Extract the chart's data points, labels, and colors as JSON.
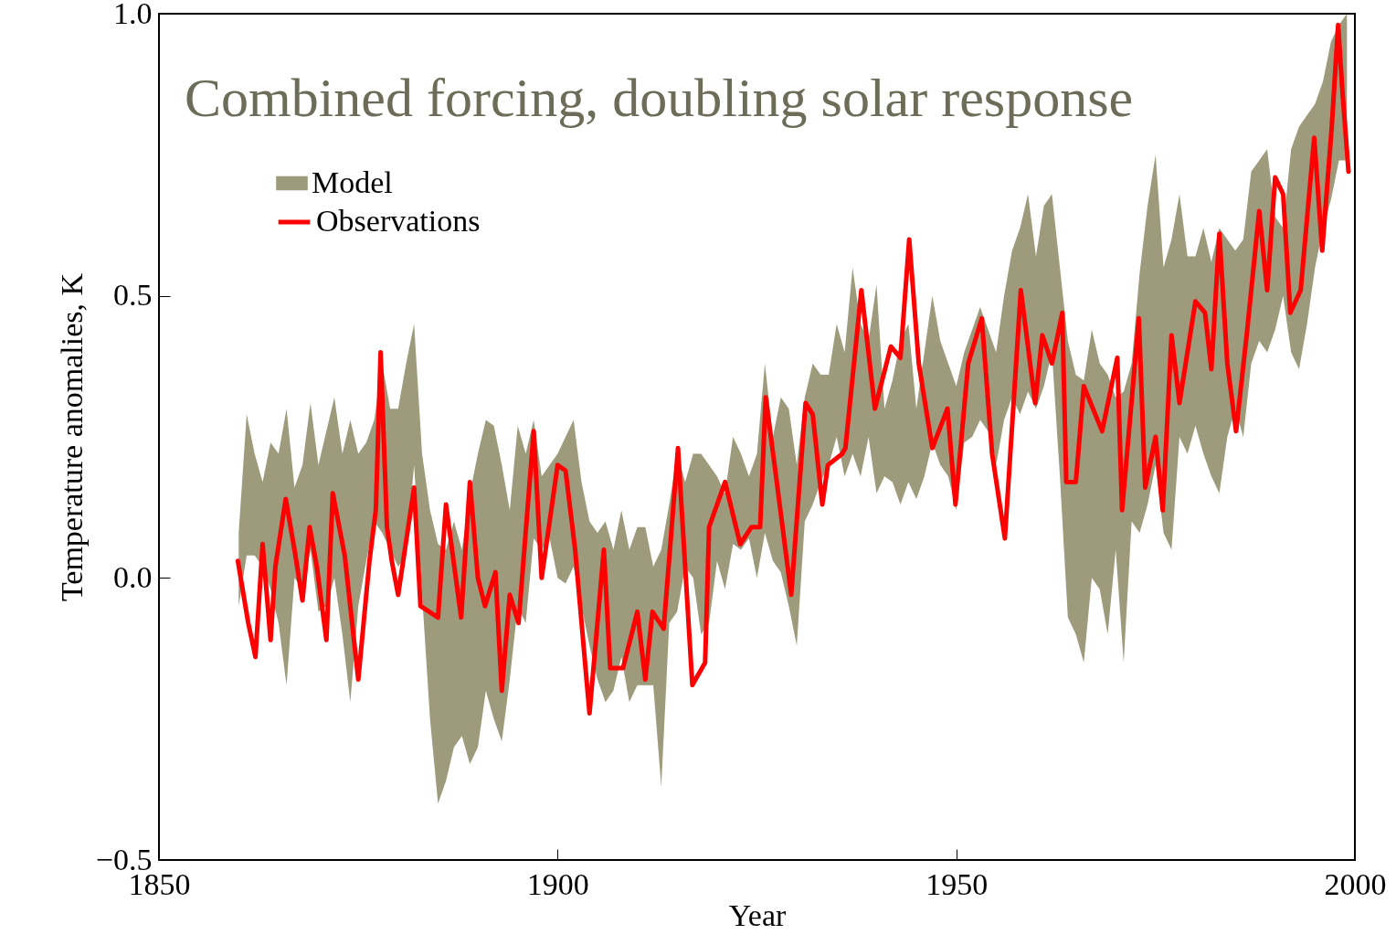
{
  "chart_data": {
    "type": "line",
    "title": "Combined forcing, doubling solar response",
    "xlabel": "Year",
    "ylabel": "Temperature anomalies, K",
    "xlim": [
      1850,
      2000
    ],
    "xticks": [
      1850,
      1900,
      1950,
      2000
    ],
    "ylim": [
      -0.5,
      1.0
    ],
    "yticks": [
      {
        "value": -0.5,
        "label": "−0.5"
      },
      {
        "value": 0,
        "label": "0.0"
      },
      {
        "value": 0.5,
        "label": "0.5"
      },
      {
        "value": 1,
        "label": "1.0"
      }
    ],
    "grid": false,
    "legend": "top left",
    "series": [
      {
        "name": "Model",
        "type": "area",
        "color": "#9e9b7c",
        "x": [
          1860,
          1861,
          1862,
          1863,
          1864,
          1865,
          1866,
          1867,
          1868,
          1869,
          1870,
          1871,
          1872,
          1873,
          1874,
          1875,
          1876,
          1877,
          1878,
          1879,
          1880,
          1881,
          1882,
          1883,
          1884,
          1885,
          1886,
          1887,
          1888,
          1889,
          1890,
          1891,
          1892,
          1893,
          1894,
          1895,
          1896,
          1897,
          1898,
          1899,
          1900,
          1901,
          1902,
          1903,
          1904,
          1905,
          1906,
          1907,
          1908,
          1909,
          1910,
          1911,
          1912,
          1913,
          1914,
          1915,
          1916,
          1917,
          1918,
          1919,
          1920,
          1921,
          1922,
          1923,
          1924,
          1925,
          1926,
          1927,
          1928,
          1929,
          1930,
          1931,
          1932,
          1933,
          1934,
          1935,
          1936,
          1937,
          1938,
          1939,
          1940,
          1941,
          1942,
          1943,
          1944,
          1945,
          1946,
          1947,
          1948,
          1949,
          1950,
          1951,
          1952,
          1953,
          1954,
          1955,
          1956,
          1957,
          1958,
          1959,
          1960,
          1961,
          1962,
          1963,
          1964,
          1965,
          1966,
          1967,
          1968,
          1969,
          1970,
          1971,
          1972,
          1973,
          1974,
          1975,
          1976,
          1977,
          1978,
          1979,
          1980,
          1981,
          1982,
          1983,
          1984,
          1985,
          1986,
          1987,
          1988,
          1989,
          1990,
          1991,
          1992,
          1993,
          1994,
          1995,
          1996,
          1997,
          1998,
          1999
        ],
        "values": [
          null,
          null,
          null,
          null,
          null,
          null,
          null,
          null,
          null,
          null,
          null,
          null,
          null,
          null,
          null,
          null,
          null,
          null,
          null,
          null,
          null,
          null,
          null,
          null,
          null,
          null,
          null,
          null,
          null,
          null,
          null,
          null,
          null,
          null,
          null,
          null,
          null,
          null,
          null,
          null,
          null,
          null,
          null,
          null,
          null,
          null,
          null,
          null,
          null,
          null,
          null,
          null,
          null,
          null,
          null,
          null,
          null,
          null,
          null,
          null,
          null,
          null,
          null,
          null,
          null,
          null,
          null,
          null,
          null,
          null,
          null,
          null,
          null,
          null,
          null,
          null,
          null,
          null,
          null,
          null,
          null,
          null,
          null,
          null,
          null,
          null,
          null,
          null,
          null,
          null,
          null,
          null,
          null,
          null,
          null,
          null,
          null,
          null,
          null,
          null,
          null,
          null,
          null,
          null,
          null,
          null,
          null,
          null,
          null,
          null,
          null,
          null,
          null,
          null,
          null,
          null,
          null,
          null,
          null,
          null,
          null,
          null,
          null,
          null,
          null,
          null,
          null,
          null,
          null,
          null,
          null,
          null,
          null,
          null,
          null,
          null,
          null,
          null,
          null,
          null
        ],
        "upper": [
          0.08,
          0.29,
          0.22,
          0.17,
          0.24,
          0.22,
          0.3,
          0.16,
          0.2,
          0.31,
          0.2,
          0.26,
          0.32,
          0.22,
          0.28,
          0.22,
          0.24,
          0.28,
          0.38,
          0.3,
          0.3,
          0.38,
          0.45,
          0.22,
          0.12,
          0.06,
          0.05,
          0.1,
          0.05,
          0.15,
          0.22,
          0.28,
          0.27,
          0.2,
          0.12,
          0.27,
          0.22,
          0.28,
          0.18,
          0.2,
          0.22,
          0.25,
          0.28,
          0.17,
          0.1,
          0.08,
          0.1,
          0.05,
          0.12,
          0.05,
          0.09,
          0.09,
          0.02,
          0.05,
          0.13,
          0.22,
          0.17,
          0.22,
          0.22,
          0.2,
          0.18,
          0.15,
          0.25,
          0.22,
          0.18,
          0.22,
          0.38,
          0.25,
          0.32,
          0.3,
          0.2,
          0.32,
          0.38,
          0.36,
          0.36,
          0.45,
          0.4,
          0.55,
          0.45,
          0.42,
          0.52,
          0.3,
          0.35,
          0.42,
          0.45,
          0.3,
          0.4,
          0.5,
          0.42,
          0.38,
          0.34,
          0.4,
          0.44,
          0.48,
          0.44,
          0.4,
          0.5,
          0.58,
          0.62,
          0.68,
          0.57,
          0.66,
          0.68,
          0.55,
          0.42,
          0.36,
          0.35,
          0.44,
          0.38,
          0.36,
          0.32,
          0.33,
          0.38,
          0.54,
          0.66,
          0.75,
          0.55,
          0.6,
          0.68,
          0.57,
          0.57,
          0.62,
          0.56,
          0.62,
          0.6,
          0.58,
          0.6,
          0.72,
          0.74,
          0.76,
          0.64,
          0.62,
          0.76,
          0.8,
          0.82,
          0.84,
          0.88,
          0.95,
          0.98,
          1.0
        ],
        "lower": [
          -0.05,
          0.04,
          0.04,
          0.02,
          -0.02,
          -0.08,
          -0.19,
          0.0,
          -0.02,
          0.05,
          -0.06,
          -0.05,
          0.0,
          -0.1,
          -0.22,
          -0.05,
          0.03,
          0.1,
          0.08,
          0.05,
          0.02,
          0.04,
          0.2,
          -0.03,
          -0.25,
          -0.4,
          -0.36,
          -0.3,
          -0.28,
          -0.33,
          -0.3,
          -0.2,
          -0.25,
          -0.29,
          -0.18,
          -0.05,
          -0.08,
          0.07,
          0.05,
          0.07,
          0.0,
          -0.01,
          0.02,
          -0.05,
          -0.12,
          -0.18,
          -0.22,
          -0.2,
          -0.14,
          -0.22,
          -0.19,
          -0.19,
          -0.19,
          -0.37,
          -0.08,
          -0.06,
          0.02,
          0.0,
          -0.1,
          -0.08,
          0.03,
          -0.02,
          0.06,
          0.05,
          0.07,
          0.0,
          0.08,
          0.03,
          0.01,
          -0.05,
          -0.12,
          0.1,
          0.13,
          0.17,
          0.2,
          0.25,
          0.18,
          0.22,
          0.18,
          0.25,
          0.15,
          0.18,
          0.17,
          0.13,
          0.17,
          0.14,
          0.18,
          0.24,
          0.2,
          0.18,
          0.12,
          0.24,
          0.25,
          0.28,
          0.26,
          0.2,
          0.28,
          0.32,
          0.29,
          0.33,
          0.3,
          0.34,
          0.4,
          0.18,
          -0.07,
          -0.1,
          -0.15,
          0.0,
          -0.02,
          -0.1,
          0.05,
          -0.15,
          0.1,
          0.08,
          0.13,
          0.2,
          0.08,
          0.05,
          0.25,
          0.22,
          0.27,
          0.22,
          0.18,
          0.15,
          0.25,
          0.3,
          0.25,
          0.38,
          0.42,
          0.4,
          0.44,
          0.5,
          0.4,
          0.37,
          0.45,
          0.55,
          0.62,
          0.67,
          0.74,
          0.74
        ]
      },
      {
        "name": "Observations",
        "color": "#ff0000",
        "x": [
          1859.9,
          1861.2,
          1862.1,
          1863,
          1864,
          1864.6,
          1865.9,
          1867,
          1868,
          1868.9,
          1869.8,
          1871,
          1871.8,
          1873.3,
          1875,
          1876.4,
          1877.2,
          1877.8,
          1878.6,
          1879.2,
          1880,
          1882,
          1882.8,
          1885,
          1886,
          1887.9,
          1889,
          1890,
          1890.9,
          1892.2,
          1893,
          1894,
          1895.1,
          1897,
          1898,
          1900,
          1901,
          1902.2,
          1904,
          1905.8,
          1906.6,
          1908.2,
          1910,
          1911,
          1911.9,
          1913.3,
          1915.1,
          1916.9,
          1918.5,
          1919,
          1921,
          1922.9,
          1924.3,
          1925.4,
          1926.1,
          1927.4,
          1929.3,
          1931.1,
          1932,
          1933.2,
          1933.9,
          1935.7,
          1936.1,
          1938.1,
          1939.8,
          1941.8,
          1943,
          1944.1,
          1945.3,
          1947,
          1948.9,
          1949.9,
          1951.5,
          1953.2,
          1954.5,
          1956.1,
          1958.1,
          1959.9,
          1960.8,
          1962,
          1963.3,
          1963.8,
          1965,
          1966,
          1968.3,
          1970.2,
          1970.8,
          1972.9,
          1973.7,
          1975,
          1975.9,
          1977,
          1978,
          1980,
          1981.2,
          1982,
          1983,
          1984,
          1985.1,
          1986.5,
          1988,
          1989,
          1990,
          1991,
          1991.9,
          1993.2,
          1994.9,
          1995.9,
          1997.1,
          1997.9,
          1998.4,
          1999.2
        ],
        "values": [
          0.03,
          -0.08,
          -0.14,
          0.06,
          -0.11,
          0.02,
          0.14,
          0.05,
          -0.04,
          0.09,
          0.02,
          -0.11,
          0.15,
          0.04,
          -0.18,
          0.03,
          0.12,
          0.4,
          0.09,
          0.03,
          -0.03,
          0.16,
          -0.05,
          -0.07,
          0.13,
          -0.07,
          0.17,
          0.0,
          -0.05,
          0.01,
          -0.2,
          -0.03,
          -0.08,
          0.26,
          0.0,
          0.2,
          0.19,
          0.05,
          -0.24,
          0.05,
          -0.16,
          -0.16,
          -0.06,
          -0.18,
          -0.06,
          -0.09,
          0.23,
          -0.19,
          -0.15,
          0.09,
          0.17,
          0.06,
          0.09,
          0.09,
          0.32,
          0.18,
          -0.03,
          0.31,
          0.29,
          0.13,
          0.2,
          0.22,
          0.23,
          0.51,
          0.3,
          0.41,
          0.39,
          0.6,
          0.38,
          0.23,
          0.3,
          0.13,
          0.38,
          0.46,
          0.22,
          0.07,
          0.51,
          0.31,
          0.43,
          0.38,
          0.47,
          0.17,
          0.17,
          0.34,
          0.26,
          0.39,
          0.12,
          0.46,
          0.16,
          0.25,
          0.12,
          0.43,
          0.31,
          0.49,
          0.47,
          0.37,
          0.61,
          0.38,
          0.26,
          0.44,
          0.65,
          0.51,
          0.71,
          0.68,
          0.47,
          0.51,
          0.78,
          0.58,
          0.8,
          0.98,
          0.87,
          0.72
        ]
      }
    ]
  }
}
